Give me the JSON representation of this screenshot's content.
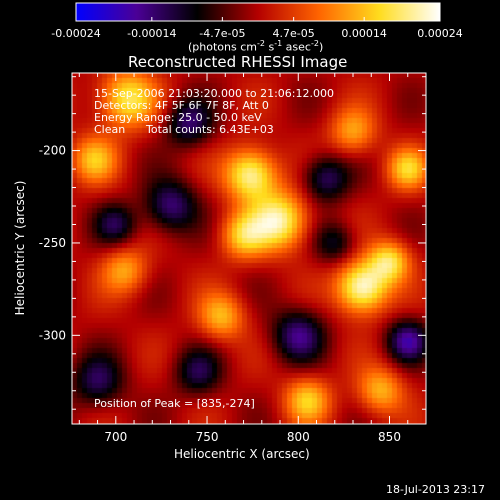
{
  "colorbar": {
    "ticks": [
      "-0.00024",
      "-0.00014",
      "-4.7e-05",
      "4.7e-05",
      "0.00014",
      "0.00024"
    ],
    "tick_values": [
      -0.00024,
      -0.00014,
      -4.7e-05,
      4.7e-05,
      0.00014,
      0.00024
    ],
    "range": [
      -0.00024,
      0.00024
    ],
    "unit_label": "(photons cm",
    "unit_exp1": "-2",
    "unit_mid": " s",
    "unit_exp2": "-1",
    "unit_end": " asec",
    "unit_exp3": "-2",
    "unit_close": ")",
    "colors": [
      "#0000ff",
      "#4b0096",
      "#000000",
      "#b40000",
      "#ff6400",
      "#ffdc1e",
      "#ffffff"
    ]
  },
  "chart_data": {
    "type": "heatmap",
    "title": "Reconstructed RHESSI Image",
    "xlabel": "Heliocentric X (arcsec)",
    "ylabel": "Heliocentric Y (arcsec)",
    "xlim": [
      676,
      870
    ],
    "ylim": [
      -348,
      -158
    ],
    "xticks": [
      700,
      750,
      800,
      850
    ],
    "yticks": [
      -200,
      -250,
      -300
    ],
    "annotations": [
      "15-Sep-2006 21:03:20.000 to 21:06:12.000",
      "Detectors: 4F 5F 6F 7F 8F, Att 0",
      "Energy Range: 25.0 - 50.0 keV",
      "Clean",
      "Total counts: 6.43E+03"
    ],
    "peak_label": "Position of Peak = [835,-274]",
    "peak": [
      835,
      -274
    ],
    "blobs": [
      {
        "x": 774,
        "y": -213,
        "amp": 0.9,
        "s": 10
      },
      {
        "x": 790,
        "y": -238,
        "amp": 0.85,
        "s": 11
      },
      {
        "x": 770,
        "y": -246,
        "amp": 0.6,
        "s": 9
      },
      {
        "x": 835,
        "y": -274,
        "amp": 1.0,
        "s": 10
      },
      {
        "x": 850,
        "y": -260,
        "amp": 0.7,
        "s": 8
      },
      {
        "x": 706,
        "y": -172,
        "amp": 0.75,
        "s": 11
      },
      {
        "x": 688,
        "y": -205,
        "amp": 0.55,
        "s": 9
      },
      {
        "x": 830,
        "y": -190,
        "amp": 0.5,
        "s": 9
      },
      {
        "x": 758,
        "y": -290,
        "amp": 0.55,
        "s": 9
      },
      {
        "x": 805,
        "y": -335,
        "amp": 0.6,
        "s": 9
      },
      {
        "x": 845,
        "y": -330,
        "amp": 0.55,
        "s": 9
      },
      {
        "x": 705,
        "y": -265,
        "amp": 0.5,
        "s": 9
      },
      {
        "x": 860,
        "y": -210,
        "amp": 0.6,
        "s": 8
      },
      {
        "x": 740,
        "y": -185,
        "amp": -0.55,
        "s": 9
      },
      {
        "x": 730,
        "y": -230,
        "amp": -0.6,
        "s": 10
      },
      {
        "x": 815,
        "y": -215,
        "amp": -0.55,
        "s": 9
      },
      {
        "x": 800,
        "y": -300,
        "amp": -0.6,
        "s": 10
      },
      {
        "x": 860,
        "y": -303,
        "amp": -0.65,
        "s": 8
      },
      {
        "x": 690,
        "y": -325,
        "amp": -0.5,
        "s": 10
      },
      {
        "x": 745,
        "y": -320,
        "amp": -0.45,
        "s": 9
      },
      {
        "x": 700,
        "y": -240,
        "amp": -0.45,
        "s": 8
      },
      {
        "x": 820,
        "y": -250,
        "amp": -0.4,
        "s": 8
      }
    ]
  },
  "footer": {
    "timestamp": "18-Jul-2013 23:17"
  }
}
